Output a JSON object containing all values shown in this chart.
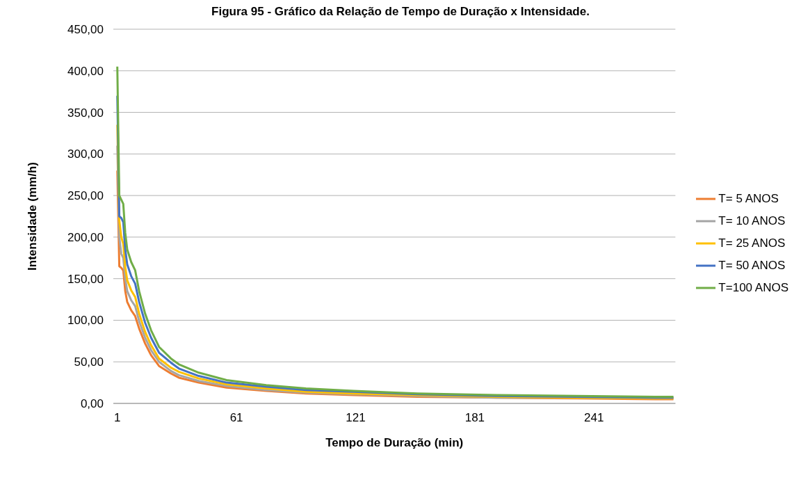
{
  "chart_data": {
    "type": "line",
    "title": "Figura 95 - Gráfico da Relação de Tempo de Duração x Intensidade.",
    "xlabel": "Tempo de Duração (min)",
    "ylabel": "Intensidade (mm/h)",
    "x": [
      1,
      2,
      3,
      4,
      5,
      6,
      8,
      10,
      12,
      15,
      18,
      22,
      28,
      32,
      42,
      56,
      76,
      96,
      120,
      152,
      192,
      232,
      272,
      281
    ],
    "xlim": [
      -1,
      282
    ],
    "xticks": [
      1,
      61,
      121,
      181,
      241
    ],
    "ylim": [
      0,
      450
    ],
    "yticks": [
      {
        "value": 0,
        "label": "0,00"
      },
      {
        "value": 50,
        "label": "50,00"
      },
      {
        "value": 100,
        "label": "100,00"
      },
      {
        "value": 150,
        "label": "150,00"
      },
      {
        "value": 200,
        "label": "200,00"
      },
      {
        "value": 250,
        "label": "250,00"
      },
      {
        "value": 300,
        "label": "300,00"
      },
      {
        "value": 350,
        "label": "350,00"
      },
      {
        "value": 400,
        "label": "400,00"
      },
      {
        "value": 450,
        "label": "450,00"
      }
    ],
    "grid": "y",
    "legend": "right",
    "marker": "none",
    "line_style": "solid",
    "series": [
      {
        "name": "T= 5 ANOS",
        "color": "#ed7d31",
        "values": [
          280,
          165,
          163,
          160,
          135,
          122,
          112,
          105,
          90,
          72,
          58,
          45,
          36,
          31,
          25,
          19,
          15,
          12,
          10,
          8,
          7,
          6,
          5,
          5
        ]
      },
      {
        "name": "T= 10 ANOS",
        "color": "#a5a5a5",
        "values": [
          310,
          200,
          180,
          175,
          150,
          135,
          124,
          117,
          99,
          79,
          64,
          50,
          39,
          34,
          27,
          21,
          16,
          13,
          11,
          9,
          7,
          7,
          6,
          6
        ]
      },
      {
        "name": "T= 25 ANOS",
        "color": "#ffc000",
        "values": [
          335,
          220,
          200,
          192,
          164,
          148,
          136,
          128,
          108,
          86,
          70,
          54,
          43,
          38,
          30,
          23,
          18,
          14,
          12,
          10,
          8,
          7,
          6,
          6
        ]
      },
      {
        "name": "T= 50 ANOS",
        "color": "#4472c4",
        "values": [
          370,
          225,
          223,
          218,
          185,
          167,
          153,
          144,
          122,
          97,
          79,
          61,
          49,
          42,
          33,
          25,
          20,
          16,
          14,
          11,
          9,
          8,
          7,
          7
        ]
      },
      {
        "name": "T=100 ANOS",
        "color": "#70ad47",
        "values": [
          405,
          250,
          245,
          240,
          205,
          185,
          170,
          160,
          135,
          108,
          88,
          68,
          54,
          47,
          37,
          28,
          22,
          18,
          15,
          12,
          10,
          9,
          8,
          8
        ]
      }
    ]
  }
}
